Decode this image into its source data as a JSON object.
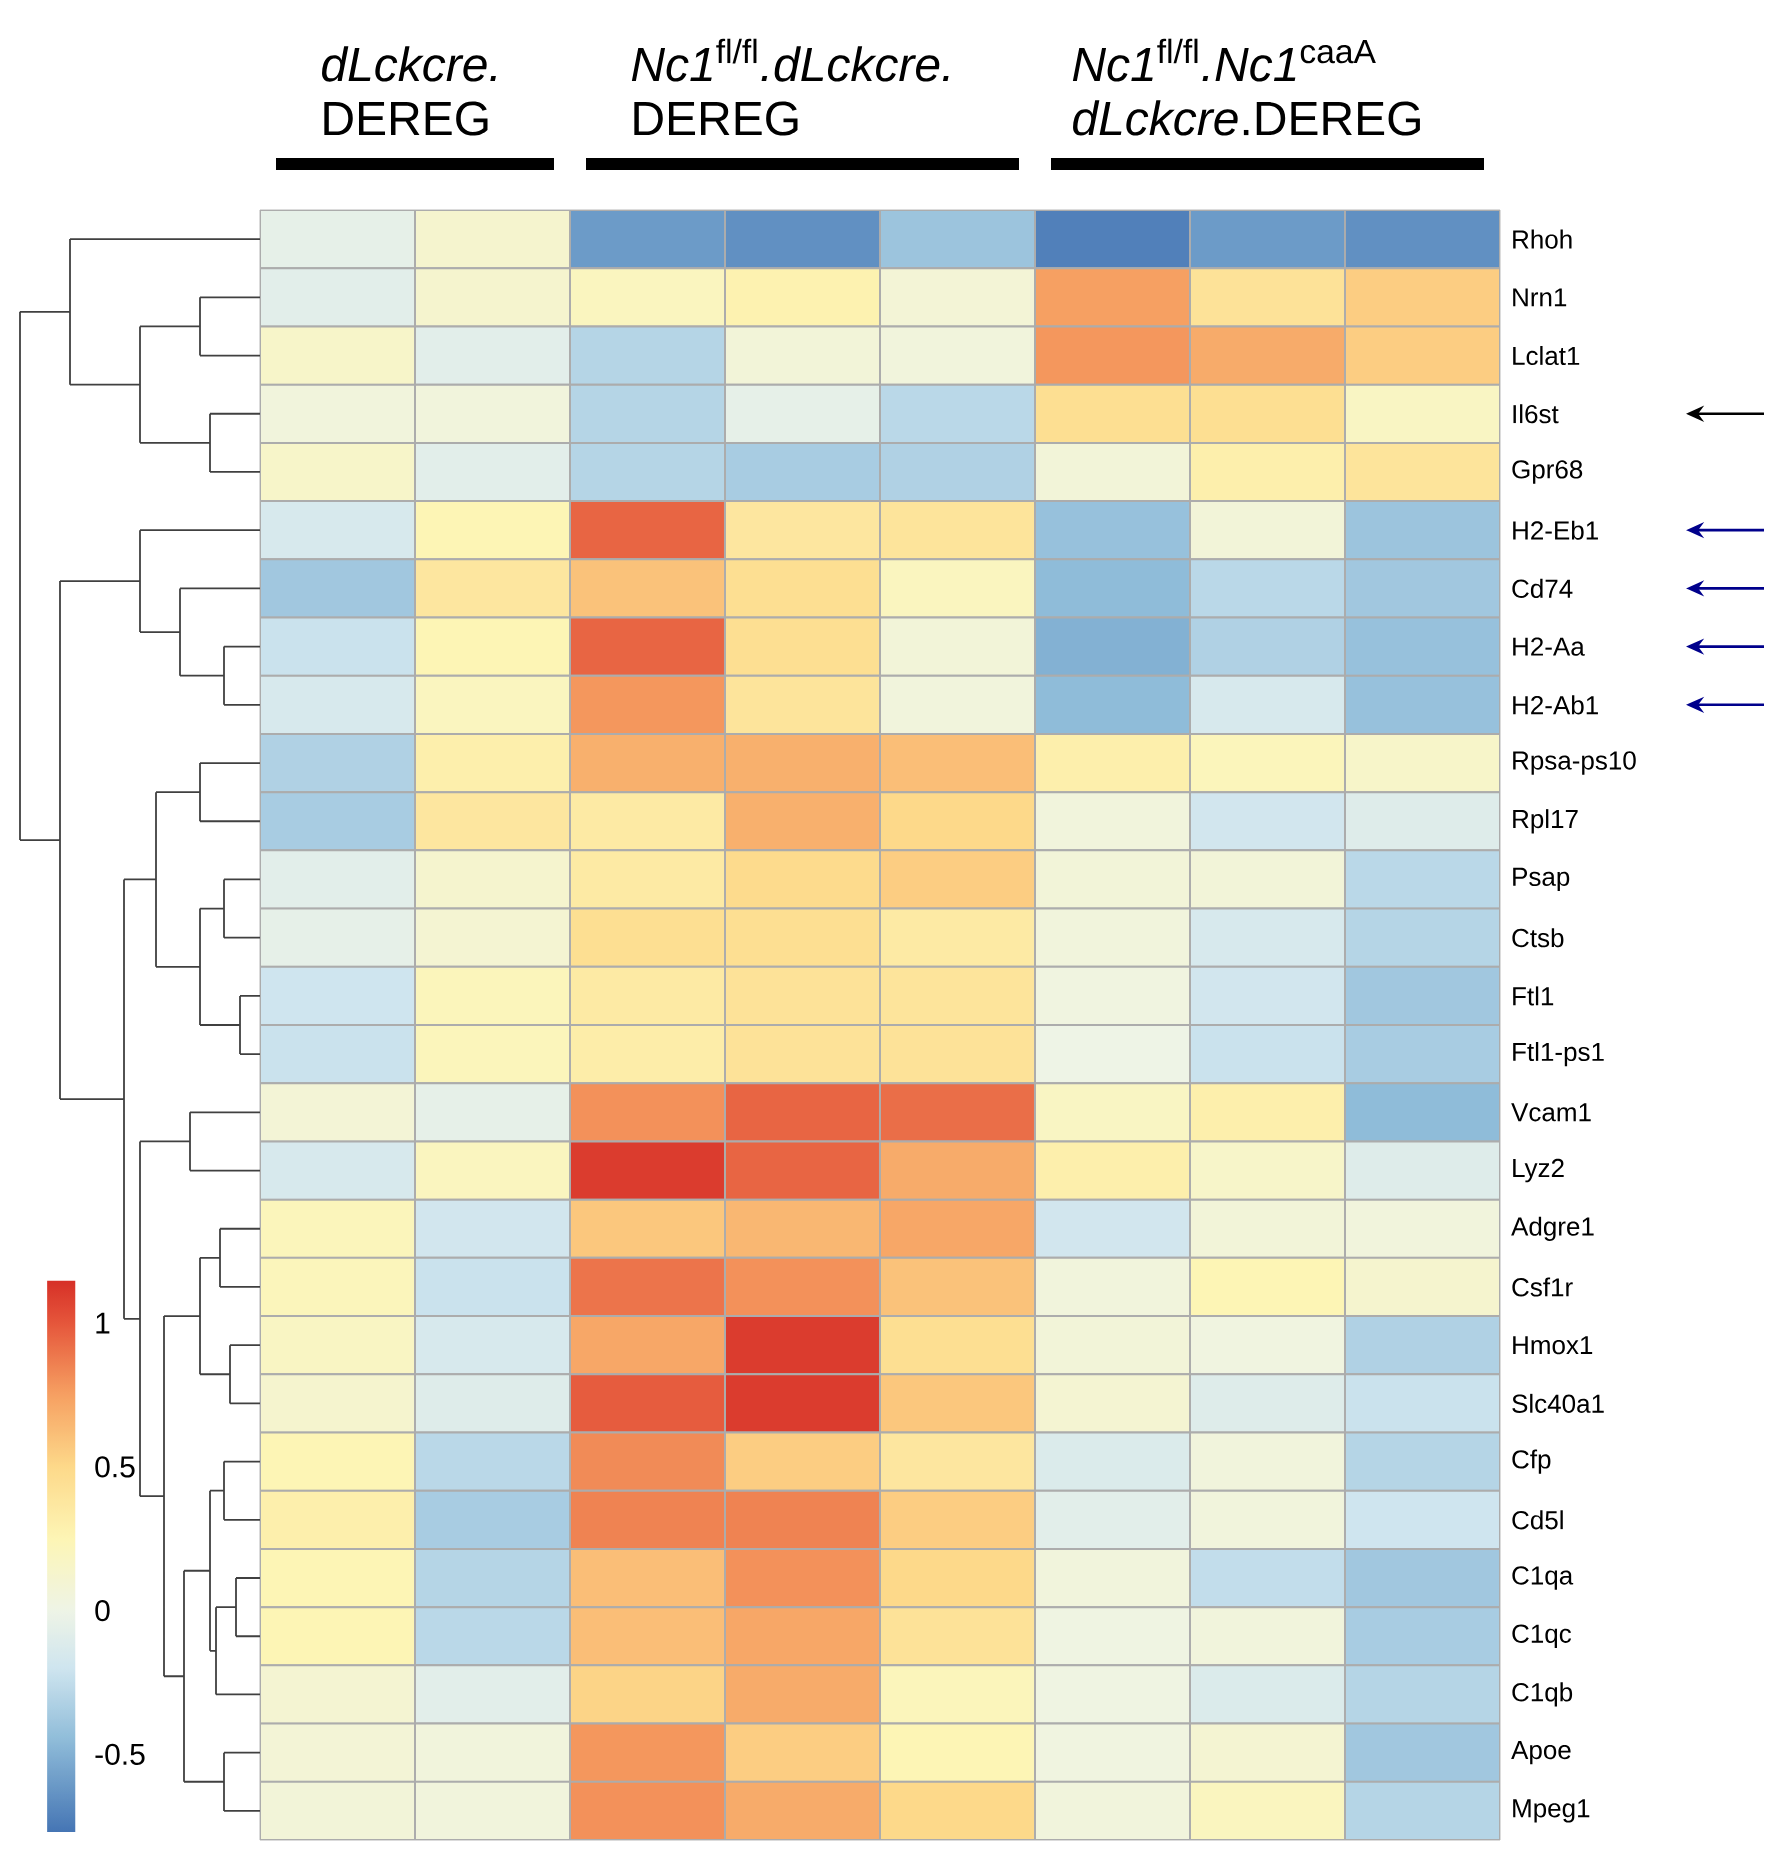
{
  "chart_data": {
    "type": "heatmap",
    "categories": [
      null,
      null,
      null,
      null,
      null,
      null,
      null,
      null
    ],
    "y_categories": [
      "Rhoh",
      "Nrn1",
      "Lclat1",
      "Il6st",
      "Gpr68",
      "H2-Eb1",
      "Cd74",
      "H2-Aa",
      "H2-Ab1",
      "Rpsa-ps10",
      "Rpl17",
      "Psap",
      "Ctsb",
      "Ftl1",
      "Ftl1-ps1",
      "Vcam1",
      "Lyz2",
      "Adgre1",
      "Csf1r",
      "Hmox1",
      "Slc40a1",
      "Cfp",
      "Cd5l",
      "C1qa",
      "C1qc",
      "C1qb",
      "Apoe",
      "Mpeg1"
    ],
    "cells": [
      [
        -0.05,
        0.12,
        -0.6,
        -0.65,
        -0.4,
        -0.72,
        -0.6,
        -0.65
      ],
      [
        -0.08,
        0.12,
        0.2,
        0.28,
        0.08,
        0.75,
        0.42,
        0.55
      ],
      [
        0.15,
        -0.08,
        -0.3,
        0.07,
        0.05,
        0.78,
        0.7,
        0.55
      ],
      [
        0.05,
        0.05,
        -0.3,
        -0.05,
        -0.28,
        0.45,
        0.45,
        0.18
      ],
      [
        0.15,
        -0.08,
        -0.3,
        -0.35,
        -0.32,
        0.07,
        0.3,
        0.4
      ],
      [
        -0.15,
        0.25,
        0.95,
        0.38,
        0.4,
        -0.42,
        0.07,
        -0.4
      ],
      [
        -0.38,
        0.38,
        0.6,
        0.45,
        0.2,
        -0.45,
        -0.28,
        -0.38
      ],
      [
        -0.22,
        0.25,
        0.95,
        0.45,
        0.07,
        -0.5,
        -0.32,
        -0.42
      ],
      [
        -0.15,
        0.2,
        0.78,
        0.4,
        0.05,
        -0.45,
        -0.15,
        -0.42
      ],
      [
        -0.32,
        0.3,
        0.68,
        0.68,
        0.62,
        0.3,
        0.22,
        0.15
      ],
      [
        -0.35,
        0.38,
        0.35,
        0.68,
        0.5,
        0.05,
        -0.18,
        -0.1
      ],
      [
        -0.08,
        0.12,
        0.35,
        0.48,
        0.55,
        0.07,
        0.07,
        -0.28
      ],
      [
        -0.05,
        0.1,
        0.45,
        0.45,
        0.35,
        0.05,
        -0.15,
        -0.3
      ],
      [
        -0.2,
        0.22,
        0.35,
        0.42,
        0.4,
        0.03,
        -0.18,
        -0.38
      ],
      [
        -0.22,
        0.22,
        0.32,
        0.42,
        0.42,
        0.0,
        -0.22,
        -0.35
      ],
      [
        0.08,
        -0.05,
        0.8,
        0.95,
        0.92,
        0.18,
        0.3,
        -0.45
      ],
      [
        -0.15,
        0.2,
        1.1,
        0.95,
        0.7,
        0.3,
        0.15,
        -0.1
      ],
      [
        0.22,
        -0.18,
        0.58,
        0.65,
        0.72,
        -0.18,
        0.07,
        0.05
      ],
      [
        0.22,
        -0.22,
        0.9,
        0.8,
        0.6,
        0.05,
        0.25,
        0.12
      ],
      [
        0.18,
        -0.15,
        0.72,
        1.1,
        0.45,
        0.07,
        0.03,
        -0.32
      ],
      [
        0.12,
        -0.1,
        0.98,
        1.1,
        0.58,
        0.1,
        -0.1,
        -0.22
      ],
      [
        0.25,
        -0.28,
        0.82,
        0.55,
        0.38,
        -0.12,
        0.05,
        -0.3
      ],
      [
        0.3,
        -0.35,
        0.85,
        0.85,
        0.55,
        -0.08,
        0.05,
        -0.2
      ],
      [
        0.25,
        -0.3,
        0.62,
        0.8,
        0.5,
        0.05,
        -0.25,
        -0.38
      ],
      [
        0.25,
        -0.28,
        0.62,
        0.72,
        0.42,
        0.02,
        0.05,
        -0.35
      ],
      [
        0.1,
        -0.08,
        0.52,
        0.7,
        0.22,
        0.02,
        -0.12,
        -0.3
      ],
      [
        0.08,
        0.05,
        0.78,
        0.55,
        0.25,
        0.03,
        0.1,
        -0.38
      ],
      [
        0.07,
        0.05,
        0.8,
        0.7,
        0.5,
        0.05,
        0.2,
        -0.3
      ]
    ],
    "clim": [
      -0.77,
      1.15
    ],
    "cticks": [
      -0.5,
      0,
      0.5,
      1
    ],
    "annotations": [
      "*dLckcre.* DEREG",
      "*Nc1*$^{fl/fl}$*.dLckcre.* DEREG",
      "*Nc1*$^{fl/fl}$*.Nc1*$^{caaA}$ *dLckcre*.DEREG"
    ]
  }
}
